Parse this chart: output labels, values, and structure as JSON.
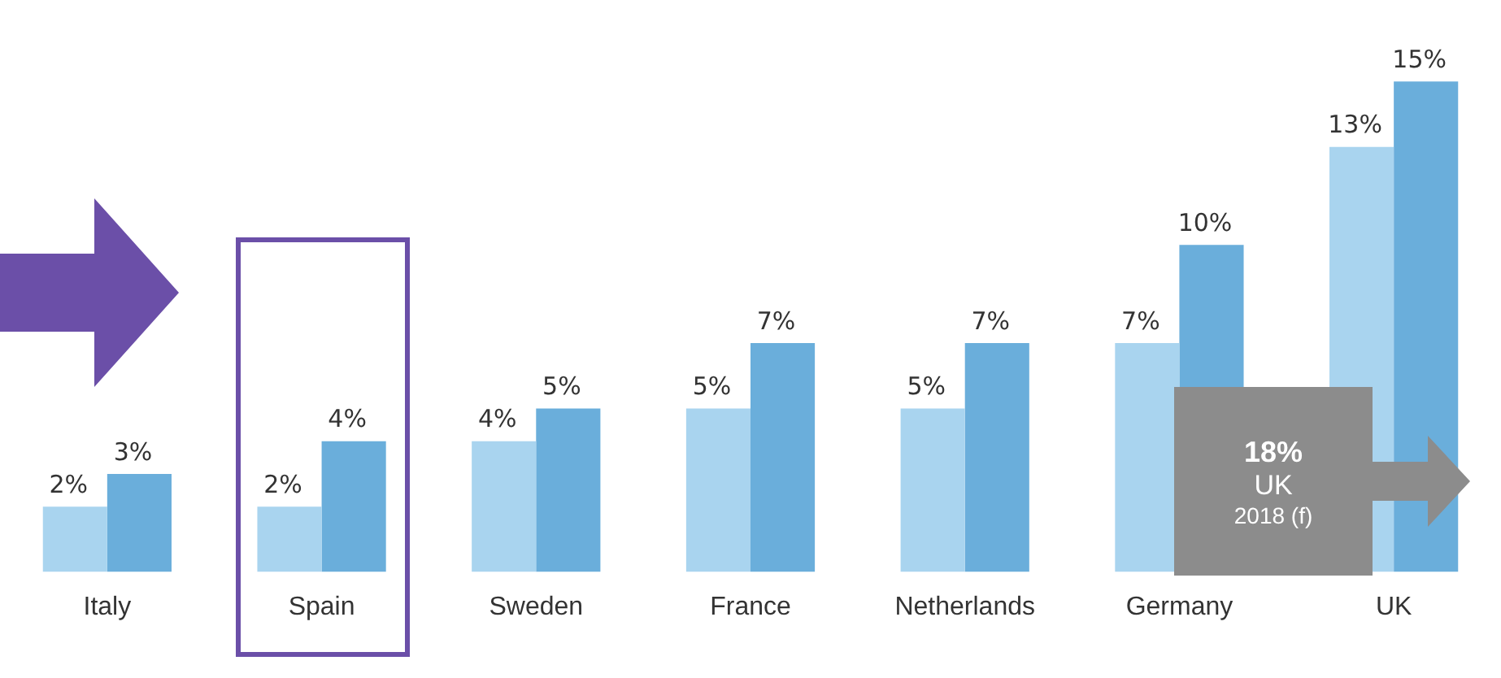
{
  "chart_data": {
    "type": "bar",
    "categories": [
      "Italy",
      "Spain",
      "Sweden",
      "France",
      "Netherlands",
      "Germany",
      "UK"
    ],
    "series": [
      {
        "color": "#a9d4ef",
        "values": [
          2,
          2,
          4,
          5,
          5,
          7,
          13
        ],
        "value_labels": [
          "2%",
          "2%",
          "4%",
          "5%",
          "5%",
          "7%",
          "13%"
        ]
      },
      {
        "color": "#6aaedb",
        "values": [
          3,
          4,
          5,
          7,
          7,
          10,
          15
        ],
        "value_labels": [
          "3%",
          "4%",
          "5%",
          "7%",
          "7%",
          "10%",
          "15%"
        ]
      }
    ],
    "annotations": [
      "18%",
      "UK",
      "2018 (f)"
    ],
    "legend": false,
    "grid": false
  }
}
